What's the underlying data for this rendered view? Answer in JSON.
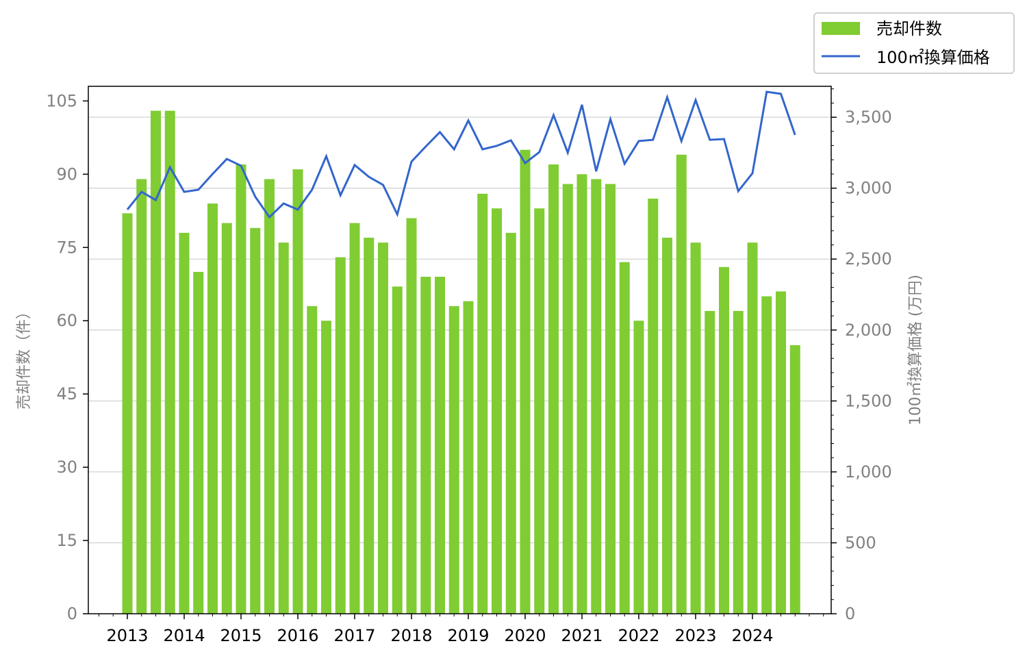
{
  "chart_data": {
    "type": "bar+line",
    "title": "",
    "xlabel": "",
    "x_tick_labels": [
      "2013",
      "2014",
      "2015",
      "2016",
      "2017",
      "2018",
      "2019",
      "2020",
      "2021",
      "2022",
      "2023",
      "2024"
    ],
    "periods_per_year": 4,
    "left_axis": {
      "label": "売却件数（件）",
      "ylim": [
        0,
        108
      ],
      "ticks": [
        0,
        15,
        30,
        45,
        60,
        75,
        90,
        105
      ],
      "tick_labels": [
        "0",
        "15",
        "30",
        "45",
        "60",
        "75",
        "90",
        "105"
      ]
    },
    "right_axis": {
      "label": "100㎡換算価格 (万円)",
      "ylim": [
        0,
        3718
      ],
      "ticks": [
        0,
        500,
        1000,
        1500,
        2000,
        2500,
        3000,
        3500
      ],
      "tick_labels": [
        "0",
        "500",
        "1,000",
        "1,500",
        "2,000",
        "2,500",
        "3,000",
        "3,500"
      ]
    },
    "grid": "horizontal, right axis",
    "legend": {
      "position": "top-right-outside",
      "entries": [
        "売却件数",
        "100㎡換算価格"
      ]
    },
    "series": [
      {
        "name": "売却件数",
        "type": "bar",
        "axis": "left",
        "color": "#80cc33",
        "values": [
          82,
          89,
          103,
          103,
          78,
          70,
          84,
          80,
          92,
          79,
          89,
          76,
          91,
          63,
          60,
          73,
          80,
          77,
          76,
          67,
          81,
          69,
          69,
          63,
          64,
          86,
          83,
          78,
          95,
          83,
          92,
          88,
          90,
          89,
          88,
          72,
          60,
          85,
          77,
          94,
          76,
          62,
          71,
          62,
          76,
          65,
          66,
          55
        ]
      },
      {
        "name": "100㎡換算価格",
        "type": "line",
        "axis": "right",
        "color": "#3366cc",
        "values": [
          2849,
          2974,
          2916,
          3148,
          2974,
          2989,
          3100,
          3206,
          3158,
          2940,
          2796,
          2892,
          2849,
          2989,
          3225,
          2950,
          3163,
          3080,
          3023,
          2815,
          3187,
          3293,
          3395,
          3274,
          3477,
          3274,
          3298,
          3337,
          3177,
          3254,
          3515,
          3250,
          3588,
          3119,
          3486,
          3172,
          3332,
          3341,
          3641,
          3332,
          3621,
          3341,
          3346,
          2979,
          3105,
          3679,
          3665,
          3375
        ]
      }
    ]
  }
}
